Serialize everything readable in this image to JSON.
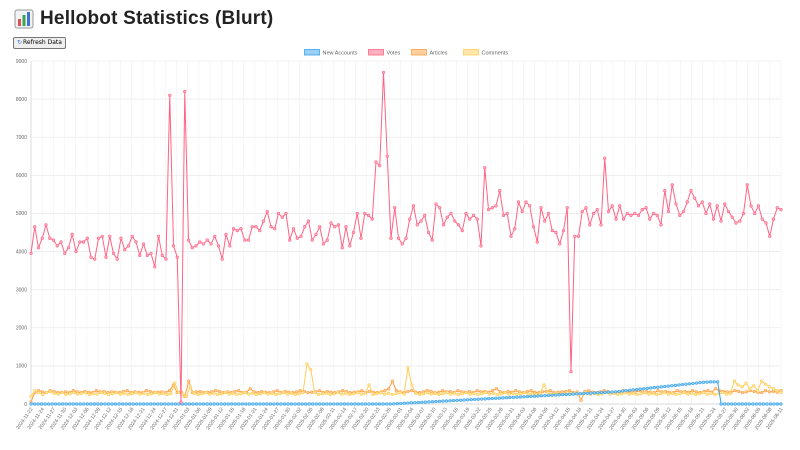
{
  "page": {
    "title": "Hellobot Statistics (Blurt)",
    "refresh_label": "Refresh Data",
    "title_icon": "bar-chart-icon",
    "refresh_icon": "refresh-icon"
  },
  "chart_data": {
    "type": "line",
    "title": "",
    "xlabel": "",
    "ylabel": "",
    "ylim": [
      0,
      9000
    ],
    "yticks": [
      0,
      1000,
      2000,
      3000,
      4000,
      5000,
      6000,
      7000,
      8000,
      9000
    ],
    "grid": true,
    "legend_position": "top-center",
    "x_range": [
      "2024-11-22",
      "2025-06-11"
    ],
    "x_tick_labels": [
      "2024-11-22",
      "2024-11-24",
      "2024-11-27",
      "2024-11-30",
      "2024-12-03",
      "2024-12-06",
      "2024-12-09",
      "2024-12-12",
      "2024-12-15",
      "2024-12-18",
      "2024-12-21",
      "2024-12-24",
      "2024-12-27",
      "2024-12-31",
      "2025-01-03",
      "2025-01-06",
      "2025-01-09",
      "2025-01-12",
      "2025-01-15",
      "2025-01-18",
      "2025-01-21",
      "2025-01-24",
      "2025-01-27",
      "2025-01-30",
      "2025-02-02",
      "2025-02-05",
      "2025-02-08",
      "2025-02-11",
      "2025-02-14",
      "2025-02-17",
      "2025-02-20",
      "2025-02-23",
      "2025-02-26",
      "2025-03-01",
      "2025-03-04",
      "2025-03-07",
      "2025-03-10",
      "2025-03-13",
      "2025-03-16",
      "2025-03-19",
      "2025-03-22",
      "2025-03-25",
      "2025-03-28",
      "2025-03-31",
      "2025-04-03",
      "2025-04-06",
      "2025-04-09",
      "2025-04-12",
      "2025-04-15",
      "2025-04-18",
      "2025-04-21",
      "2025-04-24",
      "2025-04-27",
      "2025-04-30",
      "2025-05-03",
      "2025-05-06",
      "2025-05-09",
      "2025-05-12",
      "2025-05-15",
      "2025-05-18",
      "2025-05-21",
      "2025-05-24",
      "2025-05-27",
      "2025-05-30",
      "2025-06-02",
      "2025-06-05",
      "2025-06-08",
      "2025-06-11"
    ],
    "series": [
      {
        "name": "New Accounts",
        "stroke": "#36a2eb",
        "fill": "#9ad0f5",
        "values": [
          0,
          0,
          0,
          0,
          0,
          0,
          0,
          0,
          0,
          0,
          0,
          0,
          0,
          0,
          0,
          0,
          0,
          0,
          0,
          0,
          0,
          0,
          0,
          0,
          0,
          0,
          0,
          0,
          0,
          0,
          0,
          0,
          0,
          0,
          0,
          0,
          0,
          0,
          0,
          0,
          0,
          0,
          0,
          0,
          0,
          0,
          0,
          0,
          0,
          0,
          0,
          0,
          0,
          0,
          0,
          0,
          0,
          0,
          0,
          0,
          0,
          0,
          0,
          0,
          0,
          0,
          0,
          0,
          0,
          0,
          0,
          0,
          0,
          0,
          0,
          0,
          0,
          0,
          0,
          0,
          0,
          0,
          0,
          0,
          0,
          0,
          0,
          0,
          0,
          0,
          0,
          0,
          0,
          0,
          0,
          0,
          0,
          0,
          0,
          0,
          0,
          0,
          0,
          5,
          10,
          15,
          20,
          25,
          30,
          35,
          40,
          45,
          50,
          55,
          60,
          65,
          70,
          75,
          80,
          85,
          90,
          95,
          100,
          105,
          110,
          115,
          120,
          125,
          130,
          135,
          140,
          145,
          150,
          155,
          160,
          165,
          170,
          175,
          180,
          185,
          190,
          195,
          200,
          205,
          210,
          215,
          220,
          225,
          230,
          235,
          240,
          245,
          250,
          255,
          260,
          265,
          270,
          275,
          280,
          285,
          290,
          295,
          300,
          305,
          310,
          315,
          320,
          330,
          340,
          350,
          360,
          370,
          380,
          390,
          400,
          410,
          420,
          430,
          440,
          450,
          460,
          470,
          480,
          490,
          500,
          510,
          520,
          530,
          540,
          550,
          560,
          570,
          575,
          580,
          580,
          580,
          0,
          0,
          0,
          0,
          0,
          0,
          0,
          0,
          0,
          0,
          0,
          0,
          0,
          0,
          0,
          0,
          0,
          0
        ]
      },
      {
        "name": "Votes",
        "stroke": "#ff6384",
        "fill": "#ffb1c1",
        "values": [
          3950,
          4650,
          4100,
          4350,
          4700,
          4350,
          4300,
          4150,
          4250,
          3950,
          4100,
          4450,
          4000,
          4250,
          4250,
          4350,
          3850,
          3800,
          4350,
          4400,
          3850,
          4400,
          3950,
          3800,
          4350,
          4050,
          4150,
          4400,
          4250,
          3900,
          4200,
          3900,
          3950,
          3600,
          4400,
          3900,
          3800,
          8100,
          4150,
          3850,
          50,
          8200,
          4300,
          4100,
          4150,
          4250,
          4200,
          4300,
          4200,
          4400,
          4150,
          3800,
          4450,
          4150,
          4600,
          4550,
          4600,
          4300,
          4300,
          4650,
          4650,
          4550,
          4800,
          5050,
          4650,
          4600,
          5000,
          4900,
          5000,
          4300,
          4600,
          4350,
          4400,
          4650,
          4800,
          4300,
          4450,
          4650,
          4200,
          4300,
          4750,
          4650,
          4700,
          4100,
          4650,
          4150,
          4500,
          5000,
          4350,
          5000,
          4950,
          4850,
          6350,
          6250,
          8700,
          6500,
          4350,
          5150,
          4350,
          4200,
          4350,
          4850,
          5200,
          4700,
          4800,
          4950,
          4500,
          4300,
          5250,
          5150,
          4700,
          4900,
          5000,
          4800,
          4700,
          4550,
          5000,
          4850,
          4950,
          4850,
          4150,
          6200,
          5100,
          5150,
          5200,
          5600,
          4950,
          5000,
          4400,
          4600,
          5300,
          5050,
          5300,
          5200,
          4650,
          4250,
          5150,
          4800,
          5000,
          4550,
          4500,
          4200,
          4550,
          5150,
          850,
          4400,
          4400,
          5050,
          5150,
          4700,
          5000,
          5100,
          4700,
          6450,
          5050,
          5200,
          4850,
          5200,
          4850,
          5000,
          4950,
          5000,
          4950,
          5100,
          5150,
          4850,
          5000,
          4950,
          4700,
          5600,
          5050,
          5750,
          5250,
          4950,
          5050,
          5300,
          5600,
          5400,
          5200,
          5300,
          5000,
          5250,
          4850,
          5200,
          4800,
          5250,
          5050,
          4900,
          4750,
          4800,
          5000,
          5750,
          5200,
          5000,
          5200,
          4850,
          4750,
          4400,
          4850,
          5150,
          5100
        ]
      },
      {
        "name": "Articles",
        "stroke": "#ff9f40",
        "fill": "#ffcf9f",
        "values": [
          50,
          300,
          350,
          320,
          300,
          350,
          330,
          300,
          310,
          320,
          300,
          350,
          320,
          300,
          330,
          310,
          300,
          350,
          320,
          330,
          300,
          320,
          310,
          300,
          330,
          350,
          300,
          320,
          310,
          300,
          350,
          330,
          300,
          310,
          320,
          300,
          350,
          500,
          300,
          320,
          200,
          600,
          300,
          320,
          330,
          300,
          310,
          320,
          350,
          330,
          300,
          320,
          300,
          330,
          350,
          300,
          310,
          400,
          320,
          300,
          330,
          310,
          300,
          320,
          350,
          300,
          330,
          310,
          300,
          320,
          350,
          330,
          300,
          310,
          320,
          350,
          300,
          330,
          310,
          300,
          320,
          350,
          330,
          300,
          310,
          320,
          350,
          300,
          330,
          310,
          300,
          320,
          350,
          400,
          600,
          350,
          320,
          300,
          330,
          350,
          310,
          300,
          320,
          350,
          330,
          300,
          310,
          350,
          320,
          330,
          300,
          350,
          320,
          310,
          330,
          300,
          350,
          320,
          330,
          310,
          350,
          400,
          320,
          300,
          330,
          310,
          350,
          320,
          300,
          330,
          350,
          310,
          300,
          320,
          330,
          350,
          300,
          310,
          320,
          330,
          350,
          300,
          320,
          100,
          330,
          350,
          310,
          300,
          320,
          350,
          330,
          300,
          310,
          320,
          350,
          330,
          300,
          310,
          350,
          320,
          330,
          310,
          300,
          350,
          320,
          330,
          310,
          300,
          350,
          320,
          330,
          310,
          350,
          320,
          300,
          330,
          350,
          310,
          400,
          350,
          330,
          320,
          310,
          350,
          330,
          300,
          320,
          350,
          330,
          310,
          300,
          350,
          320,
          330,
          310,
          350
        ]
      },
      {
        "name": "Comments",
        "stroke": "#ffcd56",
        "fill": "#ffe6aa",
        "values": [
          200,
          350,
          300,
          250,
          300,
          320,
          280,
          260,
          300,
          250,
          270,
          300,
          260,
          280,
          300,
          250,
          270,
          260,
          300,
          280,
          250,
          270,
          300,
          260,
          280,
          250,
          270,
          300,
          260,
          280,
          250,
          270,
          300,
          260,
          280,
          250,
          270,
          550,
          300,
          260,
          200,
          450,
          280,
          250,
          270,
          300,
          260,
          280,
          250,
          270,
          300,
          260,
          280,
          250,
          270,
          300,
          260,
          280,
          250,
          270,
          300,
          260,
          280,
          250,
          270,
          300,
          260,
          280,
          250,
          270,
          300,
          1050,
          900,
          300,
          250,
          270,
          280,
          250,
          270,
          300,
          260,
          280,
          250,
          270,
          300,
          260,
          280,
          500,
          250,
          270,
          300,
          260,
          280,
          250,
          270,
          300,
          260,
          950,
          500,
          280,
          250,
          270,
          300,
          260,
          280,
          250,
          270,
          300,
          260,
          280,
          250,
          270,
          300,
          260,
          280,
          250,
          270,
          300,
          260,
          280,
          250,
          270,
          300,
          260,
          280,
          250,
          270,
          300,
          260,
          280,
          250,
          270,
          500,
          300,
          260,
          280,
          250,
          270,
          300,
          260,
          280,
          250,
          270,
          300,
          260,
          280,
          250,
          270,
          300,
          260,
          280,
          250,
          270,
          300,
          260,
          280,
          250,
          270,
          300,
          260,
          280,
          250,
          270,
          300,
          260,
          280,
          250,
          270,
          300,
          260,
          280,
          250,
          270,
          300,
          260,
          280,
          250,
          270,
          300,
          260,
          280,
          600,
          500,
          450,
          550,
          400,
          480,
          350,
          600,
          520,
          450,
          400,
          350,
          300
        ]
      }
    ]
  }
}
